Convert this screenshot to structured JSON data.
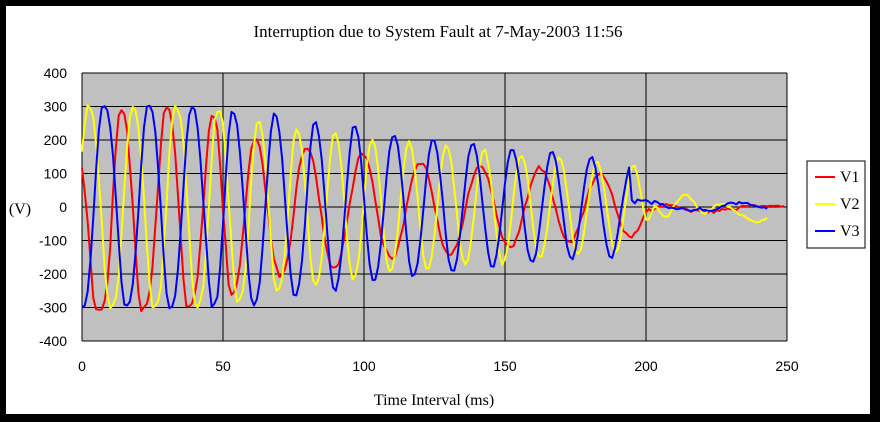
{
  "chart_data": {
    "type": "line",
    "title": "Interruption due to System Fault at 7-May-2003 11:56",
    "xlabel": "Time Interval (ms)",
    "ylabel": "(V)",
    "xlim": [
      0,
      250
    ],
    "ylim": [
      -400,
      400
    ],
    "x_ticks": [
      "0",
      "50",
      "100",
      "150",
      "200",
      "250"
    ],
    "y_ticks": [
      "400",
      "300",
      "200",
      "100",
      "0",
      "-100",
      "-200",
      "-300",
      "-400"
    ],
    "grid": "major gridlines on both axes",
    "plot_background": "#c0c0c0",
    "legend_position": "right",
    "sample_step_ms": 1,
    "series": [
      {
        "name": "V1",
        "color": "#ff0000",
        "values": [
          117,
          42,
          -41,
          -160,
          -272,
          -305,
          -307,
          -306,
          -281,
          -225,
          -121,
          43,
          174,
          273,
          289,
          278,
          228,
          121,
          4,
          -134,
          -256,
          -311,
          -299,
          -289,
          -251,
          -178,
          -58,
          61,
          190,
          281,
          297,
          290,
          246,
          163,
          38,
          -91,
          -216,
          -296,
          -297,
          -288,
          -258,
          -209,
          -108,
          4,
          125,
          228,
          272,
          267,
          231,
          122,
          -12,
          -117,
          -232,
          -262,
          -253,
          -225,
          -173,
          -88,
          9,
          103,
          173,
          197,
          202,
          180,
          129,
          53,
          -13,
          -95,
          -154,
          -180,
          -209,
          -201,
          -185,
          -148,
          -97,
          -26,
          54,
          117,
          153,
          173,
          174,
          163,
          138,
          88,
          26,
          -28,
          -93,
          -135,
          -174,
          -181,
          -179,
          -171,
          -136,
          -90,
          -39,
          14,
          57,
          107,
          147,
          160,
          153,
          145,
          114,
          74,
          19,
          -32,
          -87,
          -113,
          -130,
          -147,
          -155,
          -148,
          -120,
          -87,
          -53,
          0,
          40,
          81,
          109,
          128,
          128,
          129,
          117,
          84,
          46,
          0,
          -38,
          -82,
          -116,
          -131,
          -143,
          -142,
          -127,
          -112,
          -81,
          -50,
          -5,
          40,
          66,
          95,
          117,
          122,
          119,
          103,
          85,
          51,
          18,
          -24,
          -58,
          -91,
          -105,
          -115,
          -120,
          -117,
          -93,
          -73,
          -37,
          1,
          27,
          62,
          87,
          107,
          122,
          110,
          105,
          84,
          61,
          25,
          -5,
          -41,
          -69,
          -91,
          -100,
          -104,
          -105,
          -81,
          -62,
          -33,
          -12,
          25,
          55,
          69,
          88,
          95,
          103,
          90,
          76,
          59,
          36,
          3,
          -23,
          -50,
          -72,
          -78,
          -88,
          -91,
          -77,
          -71,
          -53,
          -31,
          -15,
          -6,
          -12,
          -6,
          0,
          3,
          0,
          9,
          6,
          5,
          5,
          1,
          -3,
          -4,
          -3,
          -10,
          -15,
          -8,
          -10,
          -11,
          -12,
          -12,
          -17,
          -9,
          -18,
          -10,
          -12,
          -6,
          -8,
          -5,
          -7,
          -7,
          -10,
          -1,
          3,
          3,
          2,
          6,
          6,
          4,
          0,
          3,
          3,
          2,
          4,
          3,
          4,
          4,
          1,
          3
        ]
      },
      {
        "name": "V2",
        "color": "#ffff00",
        "values": [
          165,
          250,
          304,
          294,
          268,
          187,
          80,
          -40,
          -179,
          -263,
          -302,
          -292,
          -271,
          -208,
          -79,
          55,
          176,
          268,
          299,
          287,
          236,
          145,
          27,
          -116,
          -231,
          -300,
          -296,
          -281,
          -234,
          -117,
          10,
          163,
          256,
          302,
          288,
          263,
          190,
          62,
          -77,
          -210,
          -287,
          -301,
          -277,
          -238,
          -132,
          0,
          141,
          258,
          284,
          286,
          248,
          144,
          18,
          -108,
          -226,
          -283,
          -275,
          -251,
          -185,
          -66,
          81,
          187,
          250,
          254,
          215,
          143,
          25,
          -98,
          -213,
          -250,
          -243,
          -211,
          -134,
          -21,
          95,
          197,
          232,
          218,
          169,
          76,
          -35,
          -152,
          -220,
          -233,
          -212,
          -151,
          -64,
          47,
          148,
          213,
          220,
          189,
          120,
          16,
          -94,
          -176,
          -216,
          -204,
          -162,
          -82,
          20,
          125,
          184,
          201,
          179,
          113,
          24,
          -75,
          -162,
          -191,
          -185,
          -140,
          -70,
          25,
          113,
          174,
          197,
          173,
          113,
          30,
          -62,
          -143,
          -183,
          -183,
          -149,
          -83,
          0,
          88,
          155,
          184,
          173,
          134,
          57,
          -23,
          -109,
          -155,
          -172,
          -155,
          -97,
          -25,
          56,
          126,
          164,
          171,
          131,
          77,
          0,
          -80,
          -139,
          -172,
          -156,
          -117,
          -52,
          31,
          100,
          146,
          152,
          133,
          87,
          14,
          -61,
          -125,
          -147,
          -148,
          -112,
          -63,
          7,
          68,
          125,
          148,
          139,
          104,
          45,
          -24,
          -91,
          -131,
          -140,
          -125,
          -78,
          -17,
          44,
          96,
          131,
          134,
          106,
          64,
          3,
          -57,
          -109,
          -137,
          -127,
          -92,
          -33,
          29,
          84,
          120,
          123,
          94,
          48,
          -3,
          -38,
          -37,
          -16,
          2,
          -2,
          -15,
          -26,
          -30,
          -27,
          -11,
          6,
          15,
          25,
          35,
          37,
          34,
          23,
          16,
          0,
          -7,
          -18,
          -21,
          -12,
          -8,
          0,
          8,
          6,
          9,
          9,
          1,
          -2,
          -9,
          -14,
          -23,
          -23,
          -28,
          -34,
          -39,
          -42,
          -46,
          -45,
          -40,
          -38,
          -32
        ]
      },
      {
        "name": "V3",
        "color": "#0000ff",
        "values": [
          -300,
          -294,
          -253,
          -157,
          -31,
          111,
          231,
          296,
          301,
          288,
          238,
          153,
          30,
          -104,
          -224,
          -291,
          -294,
          -282,
          -230,
          -135,
          -12,
          124,
          238,
          300,
          302,
          284,
          225,
          117,
          -13,
          -153,
          -259,
          -302,
          -297,
          -266,
          -188,
          -73,
          60,
          191,
          275,
          299,
          290,
          236,
          142,
          15,
          -100,
          -222,
          -298,
          -288,
          -268,
          -178,
          -51,
          92,
          216,
          284,
          278,
          245,
          164,
          55,
          -70,
          -194,
          -272,
          -294,
          -276,
          -225,
          -124,
          -2,
          124,
          226,
          279,
          270,
          223,
          142,
          24,
          -99,
          -202,
          -262,
          -264,
          -230,
          -160,
          -58,
          69,
          179,
          246,
          253,
          212,
          143,
          39,
          -78,
          -180,
          -240,
          -250,
          -212,
          -142,
          -38,
          73,
          170,
          237,
          240,
          208,
          135,
          26,
          -84,
          -171,
          -218,
          -217,
          -179,
          -110,
          -12,
          91,
          168,
          208,
          212,
          184,
          114,
          23,
          -77,
          -162,
          -206,
          -201,
          -168,
          -100,
          -13,
          79,
          157,
          199,
          198,
          162,
          94,
          11,
          -83,
          -157,
          -189,
          -190,
          -154,
          -85,
          -5,
          78,
          150,
          184,
          188,
          153,
          95,
          14,
          -66,
          -135,
          -177,
          -178,
          -143,
          -81,
          -7,
          71,
          134,
          170,
          170,
          140,
          86,
          19,
          -61,
          -128,
          -159,
          -163,
          -140,
          -81,
          -9,
          61,
          121,
          161,
          164,
          138,
          82,
          17,
          -51,
          -117,
          -148,
          -156,
          -127,
          -75,
          -9,
          58,
          113,
          143,
          149,
          120,
          71,
          7,
          -58,
          -112,
          -147,
          -152,
          -123,
          -77,
          -20,
          32,
          81,
          118,
          20,
          11,
          22,
          19,
          19,
          21,
          16,
          9,
          18,
          15,
          8,
          9,
          1,
          -3,
          -2,
          -4,
          -7,
          -5,
          -3,
          -8,
          -10,
          -12,
          -10,
          -8,
          -3,
          -9,
          -9,
          -11,
          -12,
          -10,
          -7,
          -3,
          3,
          5,
          11,
          13,
          12,
          8,
          15,
          11,
          12,
          12,
          7,
          5,
          2,
          0,
          -2,
          -1,
          -5
        ]
      }
    ]
  }
}
